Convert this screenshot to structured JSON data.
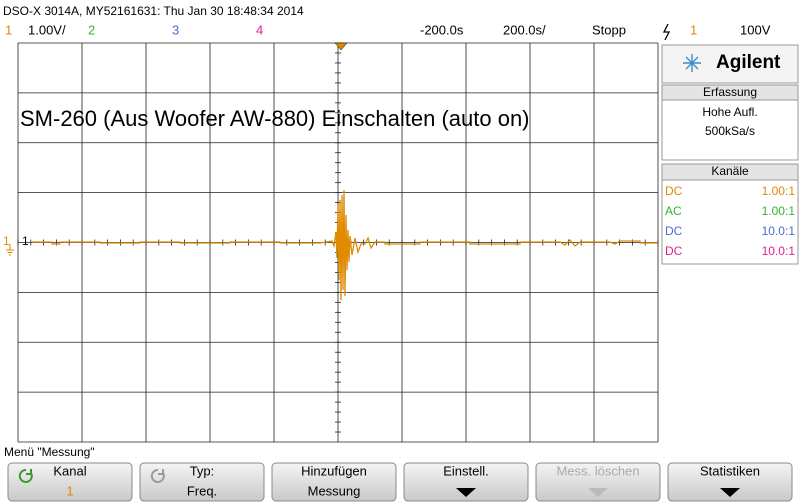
{
  "header": {
    "title": "DSO-X 3014A, MY52161631: Thu Jan 30 18:48:34 2014",
    "channels": [
      {
        "number": "1",
        "scale": "1.00V/"
      },
      {
        "number": "2"
      },
      {
        "number": "3"
      },
      {
        "number": "4"
      }
    ],
    "time_offset": "-200.0s",
    "time_scale": "200.0s/",
    "run_state": "Stopp",
    "trigger_channel": "1",
    "trigger_level": "100V"
  },
  "screen": {
    "annotation": "SM-260 (Aus Woofer AW-880) Einschalten (auto on)",
    "channel_marker": "1"
  },
  "panel": {
    "brand": "Agilent",
    "acquisition": {
      "title": "Erfassung",
      "mode": "Hohe Aufl.",
      "rate": "500kSa/s"
    },
    "channels": {
      "title": "Kanäle",
      "rows": [
        {
          "coupling": "DC",
          "probe": "1.00:1"
        },
        {
          "coupling": "AC",
          "probe": "1.00:1"
        },
        {
          "coupling": "DC",
          "probe": "10.0:1"
        },
        {
          "coupling": "DC",
          "probe": "10.0:1"
        }
      ]
    }
  },
  "menu": {
    "title": "Menü \"Messung\"",
    "buttons": [
      {
        "label": "Kanal",
        "value": "1"
      },
      {
        "label": "Typ:",
        "value": "Freq."
      },
      {
        "label": "Hinzufügen",
        "value": "Messung"
      },
      {
        "label": "Einstell."
      },
      {
        "label": "Mess. löschen"
      },
      {
        "label": "Statistiken"
      }
    ]
  }
}
